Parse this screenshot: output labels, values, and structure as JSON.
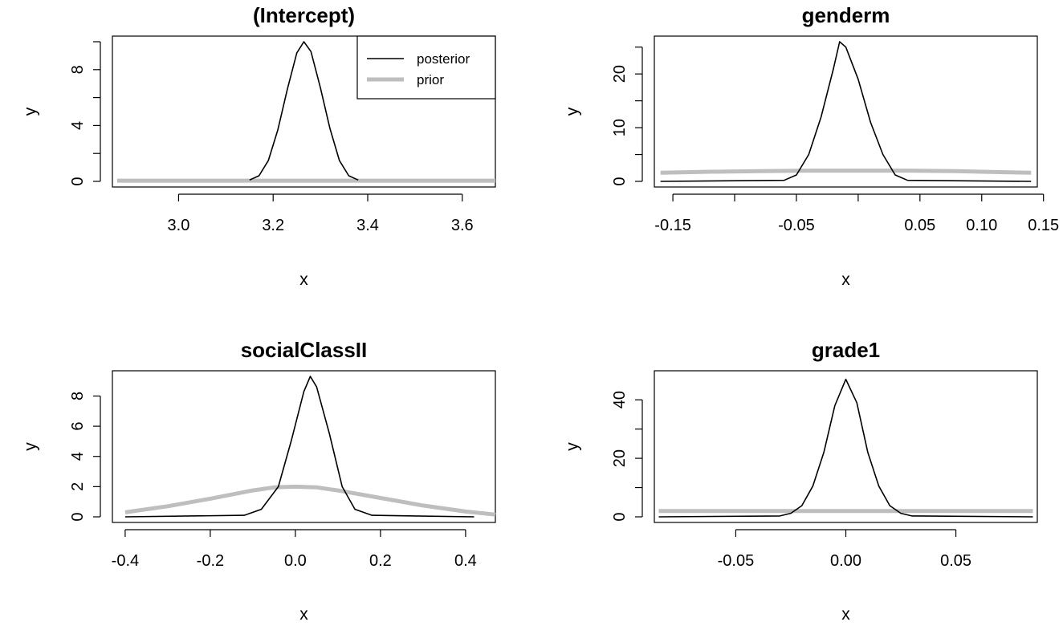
{
  "colors": {
    "posterior": "#000000",
    "prior": "#bebebe"
  },
  "chart_data": [
    {
      "type": "line",
      "title": "(Intercept)",
      "xlabel": "x",
      "ylabel": "y",
      "xlim": [
        2.86,
        3.67
      ],
      "ylim": [
        0,
        10
      ],
      "xticks": [
        {
          "v": 3.0,
          "label": "3.0"
        },
        {
          "v": 3.2,
          "label": "3.2"
        },
        {
          "v": 3.4,
          "label": "3.4"
        },
        {
          "v": 3.6,
          "label": "3.6"
        }
      ],
      "yticks": [
        {
          "v": 0,
          "label": "0"
        },
        {
          "v": 4,
          "label": "4"
        },
        {
          "v": 8,
          "label": "8"
        }
      ],
      "yminor": [
        2,
        6,
        10
      ],
      "legend": {
        "position": "top-right",
        "entries": [
          "posterior",
          "prior"
        ]
      },
      "series": [
        {
          "name": "posterior",
          "x": [
            3.15,
            3.17,
            3.19,
            3.21,
            3.23,
            3.25,
            3.265,
            3.28,
            3.3,
            3.32,
            3.34,
            3.36,
            3.38
          ],
          "y": [
            0.1,
            0.4,
            1.5,
            3.7,
            6.6,
            9.2,
            10.0,
            9.3,
            6.7,
            3.8,
            1.5,
            0.4,
            0.1
          ]
        },
        {
          "name": "prior",
          "x": [
            2.87,
            3.67
          ],
          "y": [
            0.05,
            0.05
          ]
        }
      ]
    },
    {
      "type": "line",
      "title": "genderm",
      "xlabel": "x",
      "ylabel": "y",
      "xlim": [
        -0.165,
        0.145
      ],
      "ylim": [
        0,
        26
      ],
      "xticks": [
        {
          "v": -0.15,
          "label": "-0.15"
        },
        {
          "v": -0.05,
          "label": "-0.05"
        },
        {
          "v": 0.05,
          "label": "0.05"
        },
        {
          "v": 0.1,
          "label": "0.10"
        },
        {
          "v": 0.15,
          "label": "0.15"
        }
      ],
      "xminor": [
        -0.1,
        0.0
      ],
      "yticks": [
        {
          "v": 0,
          "label": "0"
        },
        {
          "v": 10,
          "label": "10"
        },
        {
          "v": 20,
          "label": "20"
        }
      ],
      "yminor": [
        5,
        15,
        25
      ],
      "series": [
        {
          "name": "posterior",
          "x": [
            -0.16,
            -0.06,
            -0.05,
            -0.04,
            -0.03,
            -0.02,
            -0.015,
            -0.01,
            0.0,
            0.01,
            0.02,
            0.03,
            0.04,
            0.14
          ],
          "y": [
            0,
            0.2,
            1.2,
            5.0,
            12.0,
            21.0,
            26.0,
            25.0,
            19.0,
            11.0,
            5.0,
            1.2,
            0.2,
            0
          ]
        },
        {
          "name": "prior",
          "x": [
            -0.16,
            -0.12,
            -0.08,
            -0.04,
            0.0,
            0.04,
            0.08,
            0.1,
            0.14
          ],
          "y": [
            1.6,
            1.8,
            1.9,
            2.0,
            2.0,
            2.0,
            1.9,
            1.8,
            1.6
          ]
        }
      ]
    },
    {
      "type": "line",
      "title": "socialClassII",
      "xlabel": "x",
      "ylabel": "y",
      "xlim": [
        -0.43,
        0.47
      ],
      "ylim": [
        0,
        9.3
      ],
      "xticks": [
        {
          "v": -0.4,
          "label": "-0.4"
        },
        {
          "v": -0.2,
          "label": "-0.2"
        },
        {
          "v": 0.0,
          "label": "0.0"
        },
        {
          "v": 0.2,
          "label": "0.2"
        },
        {
          "v": 0.4,
          "label": "0.4"
        }
      ],
      "yticks": [
        {
          "v": 0,
          "label": "0"
        },
        {
          "v": 2,
          "label": "2"
        },
        {
          "v": 4,
          "label": "4"
        },
        {
          "v": 6,
          "label": "6"
        },
        {
          "v": 8,
          "label": "8"
        }
      ],
      "series": [
        {
          "name": "posterior",
          "x": [
            -0.4,
            -0.12,
            -0.08,
            -0.04,
            -0.01,
            0.02,
            0.035,
            0.05,
            0.08,
            0.11,
            0.14,
            0.18,
            0.42
          ],
          "y": [
            0,
            0.1,
            0.5,
            2.0,
            5.0,
            8.3,
            9.3,
            8.6,
            5.5,
            2.0,
            0.5,
            0.1,
            0
          ]
        },
        {
          "name": "prior",
          "x": [
            -0.4,
            -0.3,
            -0.2,
            -0.1,
            -0.05,
            0.0,
            0.05,
            0.1,
            0.2,
            0.3,
            0.4,
            0.47
          ],
          "y": [
            0.3,
            0.7,
            1.2,
            1.75,
            1.95,
            2.0,
            1.95,
            1.75,
            1.25,
            0.75,
            0.35,
            0.15
          ]
        }
      ]
    },
    {
      "type": "line",
      "title": "grade1",
      "xlabel": "x",
      "ylabel": "y",
      "xlim": [
        -0.087,
        0.087
      ],
      "ylim": [
        0,
        48
      ],
      "xticks": [
        {
          "v": -0.05,
          "label": "-0.05"
        },
        {
          "v": 0.0,
          "label": "0.00"
        },
        {
          "v": 0.05,
          "label": "0.05"
        }
      ],
      "yticks": [
        {
          "v": 0,
          "label": "0"
        },
        {
          "v": 20,
          "label": "20"
        },
        {
          "v": 40,
          "label": "40"
        }
      ],
      "yminor": [
        10,
        30
      ],
      "series": [
        {
          "name": "posterior",
          "x": [
            -0.085,
            -0.03,
            -0.025,
            -0.02,
            -0.015,
            -0.01,
            -0.005,
            0.0,
            0.005,
            0.01,
            0.015,
            0.02,
            0.025,
            0.03,
            0.085
          ],
          "y": [
            0,
            0.3,
            1.2,
            3.8,
            10.5,
            22.0,
            38.0,
            47.0,
            39.0,
            22.0,
            10.5,
            3.8,
            1.2,
            0.3,
            0
          ]
        },
        {
          "name": "prior",
          "x": [
            -0.085,
            0.085
          ],
          "y": [
            2.0,
            2.0
          ]
        }
      ]
    }
  ]
}
